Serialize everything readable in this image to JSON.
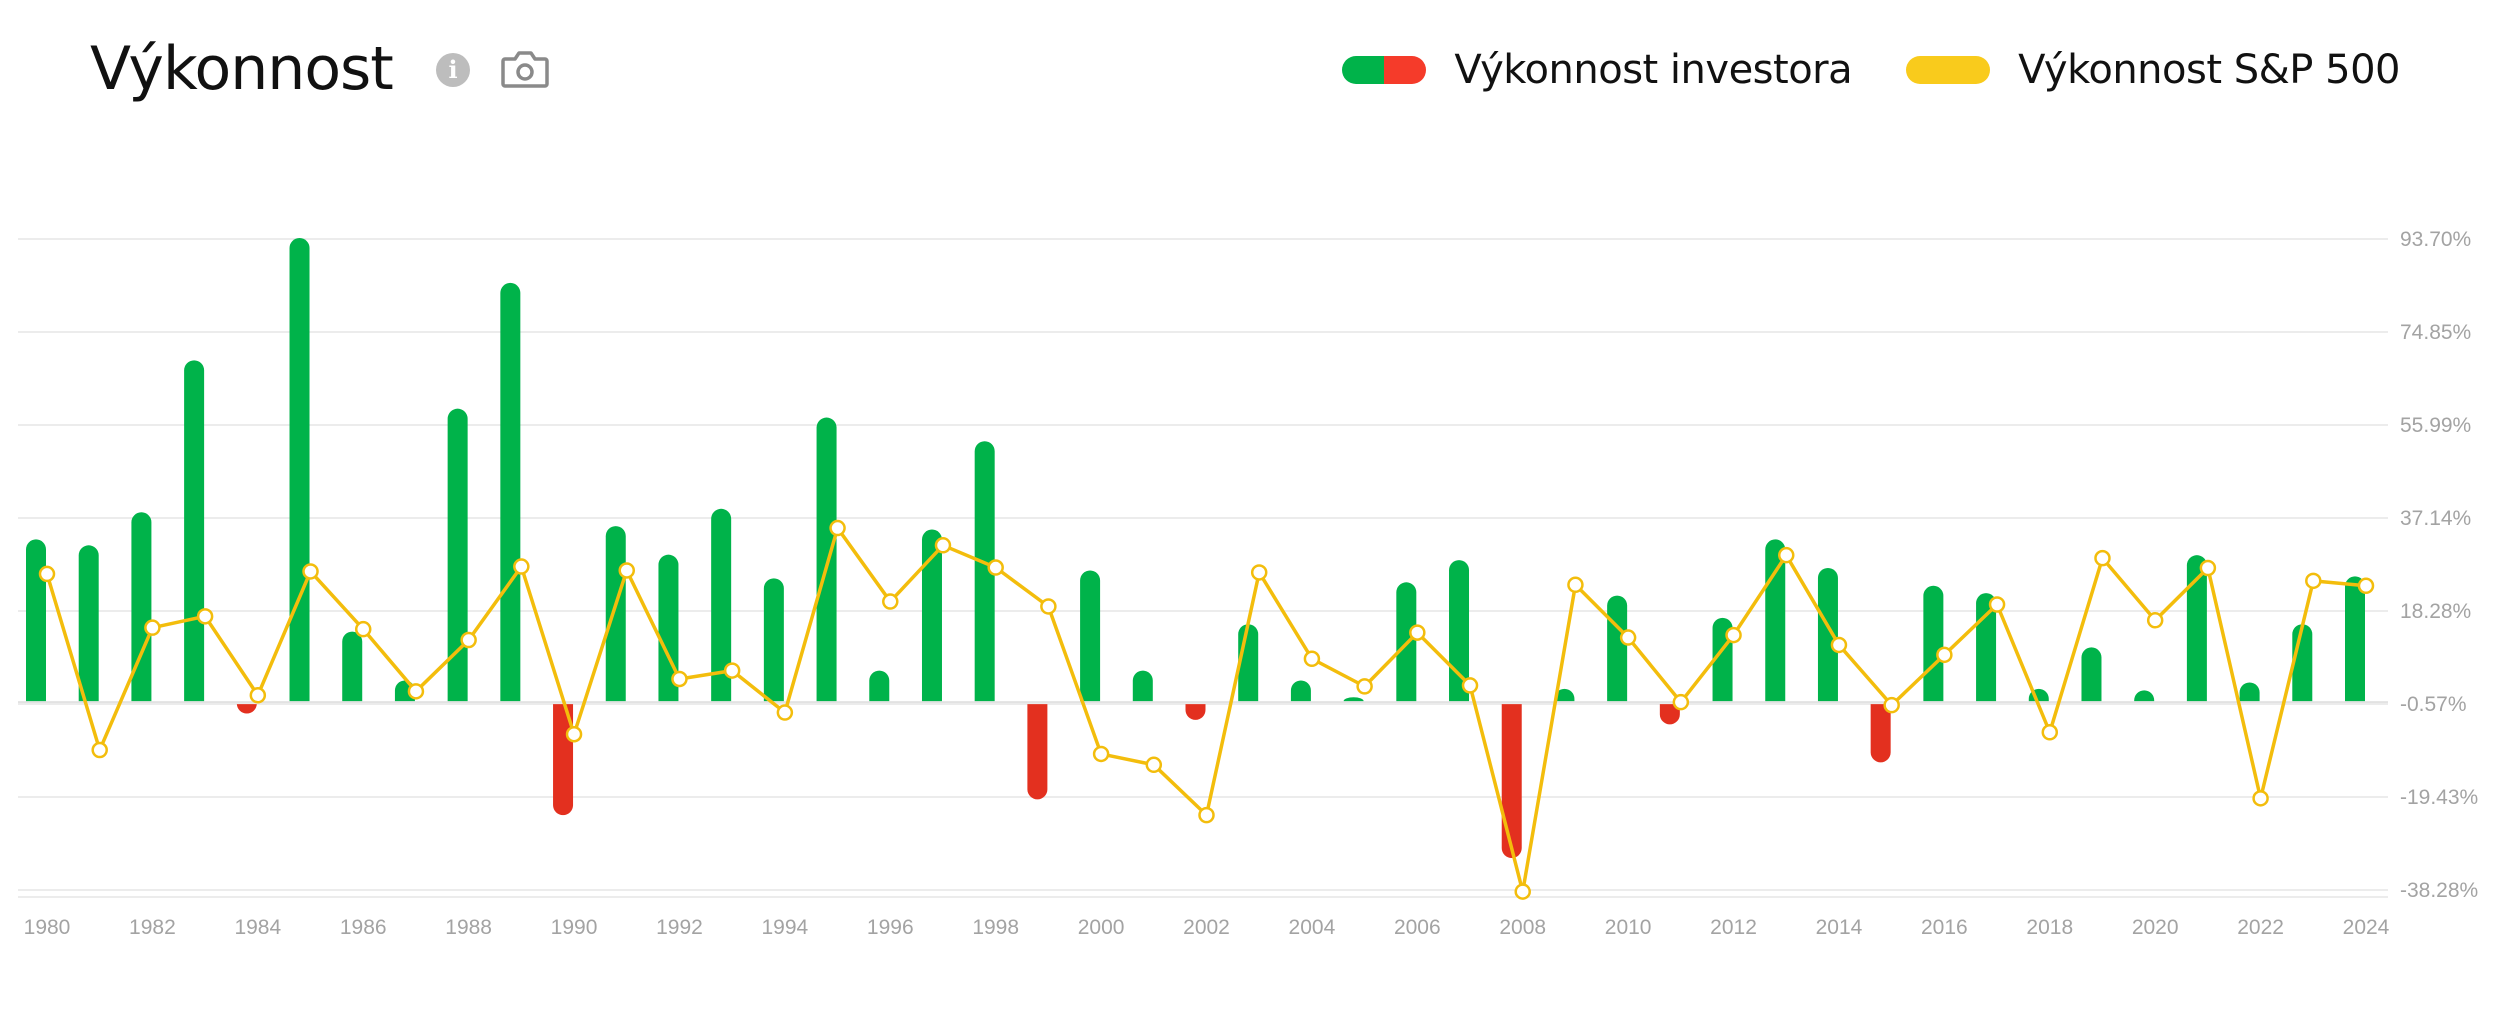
{
  "header": {
    "title": "Výkonnost",
    "info_icon": "info-icon",
    "camera_icon": "camera-icon",
    "info_glyph": "i"
  },
  "legend": [
    {
      "label": "Výkonnost investora",
      "colors": [
        "#00b34a",
        "#f53b2a"
      ]
    },
    {
      "label": "Výkonnost S&P 500",
      "colors": [
        "#f9cb1c"
      ]
    }
  ],
  "colors": {
    "positive_bar": "#00b34a",
    "negative_bar": "#e3301f",
    "line": "#f3bd0c",
    "marker_fill": "#ffffff",
    "grid": "#ececec",
    "axis_text": "#a3a3a3"
  },
  "chart_data": {
    "type": "bar",
    "title": "Výkonnost",
    "xlabel": "",
    "ylabel": "",
    "ylim": [
      -38.28,
      93.7
    ],
    "y_ticks": [
      "93.70%",
      "74.85%",
      "55.99%",
      "37.14%",
      "18.28%",
      "-0.57%",
      "-19.43%",
      "-38.28%"
    ],
    "y_tick_values": [
      93.7,
      74.85,
      55.99,
      37.14,
      18.28,
      -0.57,
      -19.43,
      -38.28
    ],
    "x_tick_labels": [
      "1980",
      "1982",
      "1984",
      "1986",
      "1988",
      "1990",
      "1992",
      "1994",
      "1996",
      "1998",
      "2000",
      "2002",
      "2004",
      "2006",
      "2008",
      "2010",
      "2012",
      "2014",
      "2016",
      "2018",
      "2020",
      "2022",
      "2024"
    ],
    "grid": true,
    "legend_position": "top-right",
    "categories": [
      "1980",
      "1981",
      "1982",
      "1983",
      "1984",
      "1985",
      "1986",
      "1987",
      "1988",
      "1989",
      "1990",
      "1991",
      "1992",
      "1993",
      "1994",
      "1995",
      "1996",
      "1997",
      "1998",
      "1999",
      "2000",
      "2001",
      "2002",
      "2003",
      "2004",
      "2005",
      "2006",
      "2007",
      "2008",
      "2009",
      "2010",
      "2011",
      "2012",
      "2013",
      "2014",
      "2015",
      "2016",
      "2017",
      "2018",
      "2019",
      "2020",
      "2021",
      "2022",
      "2023",
      "2024"
    ],
    "series": [
      {
        "name": "Výkonnost investora",
        "type": "bar",
        "values": [
          32.8,
          31.6,
          38.3,
          69.1,
          -2.5,
          93.9,
          14.1,
          4.2,
          59.3,
          84.8,
          -23.1,
          35.5,
          29.7,
          39.0,
          24.9,
          57.5,
          6.2,
          34.8,
          52.7,
          -19.9,
          26.5,
          6.2,
          -3.8,
          15.6,
          4.2,
          0.8,
          24.1,
          28.6,
          -31.8,
          2.5,
          21.4,
          -4.7,
          16.9,
          32.8,
          27.0,
          -12.4,
          23.4,
          21.9,
          2.5,
          10.9,
          2.2,
          29.6,
          3.8,
          15.6,
          25.3
        ]
      },
      {
        "name": "Výkonnost S&P 500",
        "type": "line",
        "values": [
          25.8,
          -9.9,
          14.9,
          17.2,
          1.2,
          26.3,
          14.6,
          2.0,
          12.4,
          27.3,
          -6.7,
          26.5,
          4.5,
          6.2,
          -2.3,
          35.1,
          20.2,
          31.6,
          27.1,
          19.2,
          -10.7,
          -12.9,
          -23.1,
          26.1,
          8.6,
          3.0,
          13.9,
          3.2,
          -38.6,
          23.6,
          12.9,
          -0.2,
          13.4,
          29.6,
          11.4,
          -0.8,
          9.4,
          19.6,
          -6.3,
          29.0,
          16.4,
          27.0,
          -19.7,
          24.4,
          23.4
        ]
      }
    ]
  }
}
